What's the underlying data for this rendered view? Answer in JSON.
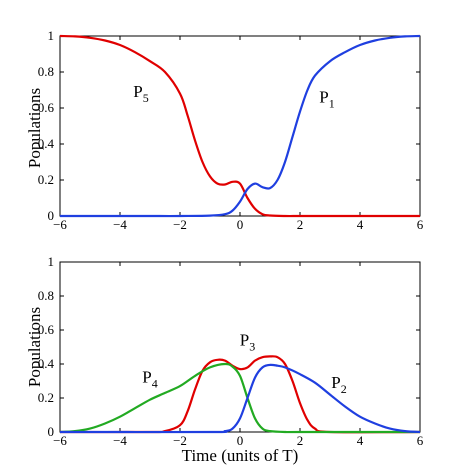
{
  "chart_data": [
    {
      "type": "line",
      "xlabel": "",
      "ylabel": "Populations",
      "xlim": [
        -6,
        6
      ],
      "ylim": [
        0,
        1
      ],
      "xticks": [
        -6,
        -4,
        -2,
        0,
        2,
        4,
        6
      ],
      "yticks": [
        0,
        0.2,
        0.4,
        0.6,
        0.8,
        1
      ],
      "series": [
        {
          "name": "P5",
          "color": "#e00000",
          "x": [
            -6,
            -5.5,
            -5,
            -4.5,
            -4,
            -3.5,
            -3,
            -2.5,
            -2,
            -1.75,
            -1.5,
            -1.25,
            -1,
            -0.75,
            -0.5,
            -0.25,
            0,
            0.25,
            0.5,
            0.75,
            1,
            1.5,
            2,
            3,
            4,
            5,
            6
          ],
          "y": [
            1.0,
            0.998,
            0.99,
            0.975,
            0.95,
            0.91,
            0.86,
            0.8,
            0.68,
            0.56,
            0.42,
            0.3,
            0.22,
            0.18,
            0.175,
            0.19,
            0.18,
            0.1,
            0.04,
            0.01,
            0.003,
            0.0,
            0.0,
            0.0,
            0.0,
            0.0,
            0.0
          ],
          "label_text": "P",
          "label_sub": "5"
        },
        {
          "name": "P1",
          "color": "#1f3fe0",
          "x": [
            -6,
            -5,
            -4,
            -3,
            -2,
            -1,
            -0.5,
            -0.25,
            0,
            0.25,
            0.5,
            0.75,
            1,
            1.25,
            1.5,
            1.75,
            2,
            2.25,
            2.5,
            3,
            3.5,
            4,
            4.5,
            5,
            5.5,
            6
          ],
          "y": [
            0.0,
            0.0,
            0.0,
            0.0,
            0.0,
            0.002,
            0.01,
            0.03,
            0.08,
            0.15,
            0.18,
            0.16,
            0.155,
            0.2,
            0.3,
            0.44,
            0.58,
            0.7,
            0.78,
            0.86,
            0.91,
            0.95,
            0.975,
            0.99,
            0.998,
            1.0
          ],
          "label_text": "P",
          "label_sub": "1"
        }
      ],
      "annotations": [
        {
          "text": "P",
          "sub": "5",
          "x": -3.3,
          "y": 0.66
        },
        {
          "text": "P",
          "sub": "1",
          "x": 2.9,
          "y": 0.63
        }
      ]
    },
    {
      "type": "line",
      "xlabel": "Time (units of T)",
      "ylabel": "Populations",
      "xlim": [
        -6,
        6
      ],
      "ylim": [
        0,
        1
      ],
      "xticks": [
        -6,
        -4,
        -2,
        0,
        2,
        4,
        6
      ],
      "yticks": [
        0,
        0.2,
        0.4,
        0.6,
        0.8,
        1
      ],
      "series": [
        {
          "name": "P3",
          "color": "#e00000",
          "x": [
            -6,
            -3,
            -2.5,
            -2,
            -1.75,
            -1.5,
            -1.25,
            -1,
            -0.75,
            -0.5,
            -0.25,
            0,
            0.25,
            0.5,
            0.75,
            1,
            1.25,
            1.5,
            1.75,
            2,
            2.25,
            2.5,
            3,
            6
          ],
          "y": [
            0.0,
            0.0,
            0.005,
            0.04,
            0.12,
            0.25,
            0.36,
            0.41,
            0.425,
            0.42,
            0.39,
            0.37,
            0.38,
            0.42,
            0.44,
            0.445,
            0.44,
            0.4,
            0.3,
            0.17,
            0.07,
            0.02,
            0.0,
            0.0
          ]
        },
        {
          "name": "P4",
          "color": "#22aa22",
          "x": [
            -6,
            -5.5,
            -5,
            -4.5,
            -4,
            -3.5,
            -3,
            -2.5,
            -2,
            -1.5,
            -1,
            -0.5,
            -0.25,
            0,
            0.25,
            0.5,
            0.75,
            1,
            1.5,
            2,
            6
          ],
          "y": [
            0.0,
            0.005,
            0.02,
            0.05,
            0.09,
            0.14,
            0.19,
            0.23,
            0.27,
            0.33,
            0.38,
            0.4,
            0.385,
            0.33,
            0.2,
            0.08,
            0.02,
            0.005,
            0.0,
            0.0,
            0.0
          ]
        },
        {
          "name": "P2",
          "color": "#1f3fe0",
          "x": [
            -6,
            -1,
            -0.5,
            -0.25,
            0,
            0.25,
            0.5,
            0.75,
            1,
            1.25,
            1.5,
            2,
            2.5,
            3,
            3.5,
            4,
            4.5,
            5,
            5.5,
            6
          ],
          "y": [
            0.0,
            0.0,
            0.005,
            0.02,
            0.08,
            0.2,
            0.32,
            0.38,
            0.395,
            0.39,
            0.38,
            0.34,
            0.29,
            0.22,
            0.15,
            0.09,
            0.05,
            0.02,
            0.005,
            0.0
          ]
        }
      ],
      "annotations": [
        {
          "text": "P",
          "sub": "4",
          "x": -3.0,
          "y": 0.29
        },
        {
          "text": "P",
          "sub": "3",
          "x": 0.25,
          "y": 0.51
        },
        {
          "text": "P",
          "sub": "2",
          "x": 3.3,
          "y": 0.26
        }
      ]
    }
  ]
}
